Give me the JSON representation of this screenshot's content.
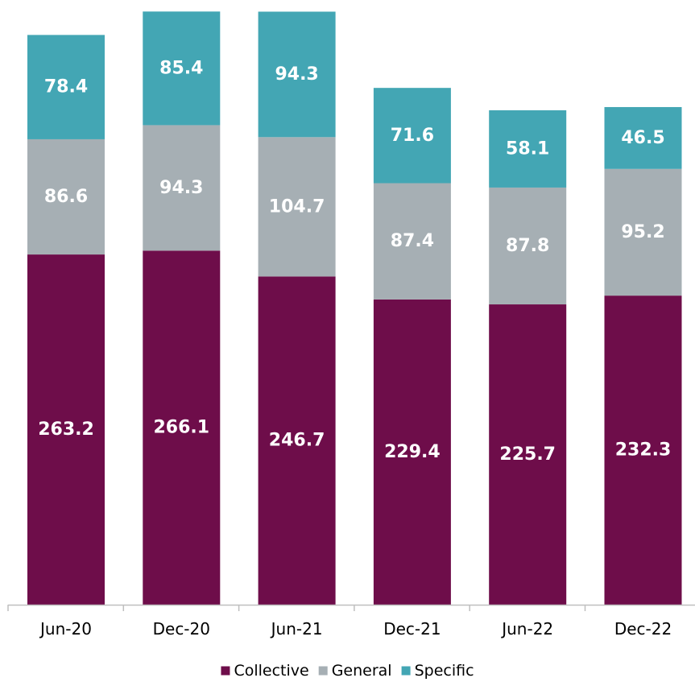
{
  "chart_data": {
    "type": "bar",
    "stacked": true,
    "categories": [
      "Jun-20",
      "Dec-20",
      "Jun-21",
      "Dec-21",
      "Jun-22",
      "Dec-22"
    ],
    "series": [
      {
        "name": "Collective",
        "color": "#6e0d4a",
        "values": [
          263.2,
          266.1,
          246.7,
          229.4,
          225.7,
          232.3
        ]
      },
      {
        "name": "General",
        "color": "#a6afb4",
        "values": [
          86.6,
          94.3,
          104.7,
          87.4,
          87.8,
          95.2
        ]
      },
      {
        "name": "Specific",
        "color": "#43a6b4",
        "values": [
          78.4,
          85.4,
          94.3,
          71.6,
          58.1,
          46.5
        ]
      }
    ],
    "title": "",
    "xlabel": "",
    "ylabel": "",
    "ylim": [
      0,
      450
    ],
    "grid": false,
    "legend": "bottom",
    "data_labels": true,
    "axis_color": "#bfbfbf",
    "label_color": "#ffffff"
  }
}
